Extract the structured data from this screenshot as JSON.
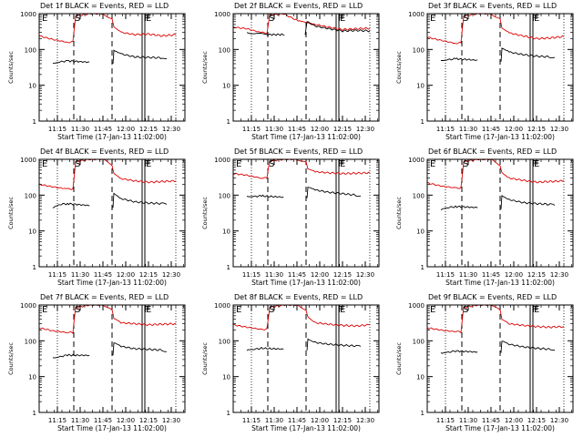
{
  "figure": {
    "series_legend": {
      "black": "Events",
      "red": "LLD"
    },
    "colors": {
      "events": "#000000",
      "lld": "#dd0000",
      "axes": "#000000",
      "grid": "#000000"
    }
  },
  "chart_data": [
    {
      "type": "line",
      "title": "Det 1f BLACK = Events, RED = LLD",
      "xlabel": "Start Time (17-Jan-13 11:02:00)",
      "ylabel": "Counts/sec",
      "yscale": "log",
      "ylim": [
        1,
        1000
      ],
      "xlim": [
        11.05,
        12.65
      ],
      "xticks": [
        "11:15",
        "11:30",
        "11:45",
        "12:00",
        "12:15",
        "12:30"
      ],
      "yticks": [
        "1",
        "10",
        "100",
        "1000"
      ],
      "markers": {
        "E": 11.07,
        "S": 11.43,
        "F": 12.19,
        "E2": 12.21
      },
      "dotted_lines": [
        11.25,
        12.55
      ],
      "dashed_lines": [
        11.43,
        11.85
      ],
      "solid_lines": [
        12.18,
        12.21
      ],
      "series": [
        {
          "name": "LLD",
          "color": "red",
          "x": [
            11.05,
            11.2,
            11.35,
            11.42,
            11.45,
            11.6,
            11.75,
            11.85,
            11.87,
            11.95,
            12.1,
            12.25,
            12.4,
            12.55
          ],
          "y": [
            240,
            190,
            160,
            160,
            850,
            1000,
            1000,
            720,
            430,
            300,
            260,
            270,
            240,
            260
          ]
        },
        {
          "name": "Events",
          "color": "black",
          "x": [
            11.2,
            11.28,
            11.36,
            11.86,
            11.87,
            11.95,
            12.1,
            12.25,
            12.4,
            12.45
          ],
          "y": [
            40,
            45,
            48,
            40,
            95,
            75,
            62,
            60,
            58,
            55
          ]
        }
      ]
    },
    {
      "type": "line",
      "title": "Det 2f BLACK = Events, RED = LLD",
      "xlabel": "Start Time (17-Jan-13 11:02:00)",
      "ylabel": "Counts/sec",
      "yscale": "log",
      "ylim": [
        1,
        1000
      ],
      "xlim": [
        11.05,
        12.65
      ],
      "xticks": [
        "11:15",
        "11:30",
        "11:45",
        "12:00",
        "12:15",
        "12:30"
      ],
      "yticks": [
        "1",
        "10",
        "100",
        "1000"
      ],
      "markers": {
        "S": 11.43,
        "F": 12.19,
        "E": 12.21
      },
      "dotted_lines": [
        11.25,
        12.55
      ],
      "dashed_lines": [
        11.43,
        11.85
      ],
      "solid_lines": [
        12.18,
        12.21
      ],
      "series": [
        {
          "name": "LLD",
          "color": "red",
          "x": [
            11.05,
            11.2,
            11.35,
            11.42,
            11.45,
            11.6,
            11.75,
            11.95,
            12.1,
            12.25,
            12.4,
            12.55
          ],
          "y": [
            420,
            380,
            300,
            290,
            900,
            1000,
            650,
            500,
            420,
            360,
            380,
            390
          ]
        },
        {
          "name": "Events",
          "color": "black",
          "x": [
            11.2,
            11.3,
            11.4,
            11.84,
            11.86,
            11.95,
            12.1,
            12.25,
            12.4,
            12.55
          ],
          "y": [
            300,
            280,
            260,
            260,
            600,
            450,
            380,
            330,
            340,
            330
          ]
        }
      ]
    },
    {
      "type": "line",
      "title": "Det 3f BLACK = Events, RED = LLD",
      "xlabel": "Start Time (17-Jan-13 11:02:00)",
      "ylabel": "Counts/sec",
      "yscale": "log",
      "ylim": [
        1,
        1000
      ],
      "xlim": [
        11.05,
        12.65
      ],
      "xticks": [
        "11:15",
        "11:30",
        "11:45",
        "12:00",
        "12:15",
        "12:30"
      ],
      "yticks": [
        "1",
        "10",
        "100",
        "1000"
      ],
      "markers": {
        "E": 11.07,
        "S": 11.43,
        "F": 12.19,
        "E2": 12.21
      },
      "dotted_lines": [
        11.25,
        12.55
      ],
      "dashed_lines": [
        11.43,
        11.85
      ],
      "solid_lines": [
        12.18,
        12.21
      ],
      "series": [
        {
          "name": "LLD",
          "color": "red",
          "x": [
            11.05,
            11.2,
            11.35,
            11.42,
            11.45,
            11.6,
            11.75,
            11.85,
            11.87,
            11.95,
            12.1,
            12.25,
            12.4,
            12.55
          ],
          "y": [
            220,
            180,
            150,
            150,
            850,
            1000,
            1000,
            700,
            400,
            290,
            240,
            200,
            210,
            230
          ]
        },
        {
          "name": "Events",
          "color": "black",
          "x": [
            11.2,
            11.28,
            11.36,
            11.86,
            11.87,
            11.95,
            12.1,
            12.25,
            12.4,
            12.45
          ],
          "y": [
            48,
            52,
            55,
            45,
            110,
            85,
            72,
            65,
            62,
            60
          ]
        }
      ]
    },
    {
      "type": "line",
      "title": "Det 4f BLACK = Events, RED = LLD",
      "xlabel": "Start Time (17-Jan-13 11:02:00)",
      "ylabel": "Counts/sec",
      "yscale": "log",
      "ylim": [
        1,
        1000
      ],
      "xlim": [
        11.05,
        12.65
      ],
      "xticks": [
        "11:15",
        "11:30",
        "11:45",
        "12:00",
        "12:15",
        "12:30"
      ],
      "yticks": [
        "1",
        "10",
        "100",
        "1000"
      ],
      "markers": {
        "E": 11.07,
        "S": 11.43,
        "F": 12.19,
        "E2": 12.21
      },
      "dotted_lines": [
        11.25,
        12.55
      ],
      "dashed_lines": [
        11.43,
        11.85
      ],
      "solid_lines": [
        12.18,
        12.21
      ],
      "series": [
        {
          "name": "LLD",
          "color": "red",
          "x": [
            11.05,
            11.2,
            11.35,
            11.42,
            11.45,
            11.6,
            11.75,
            11.85,
            11.87,
            11.95,
            12.1,
            12.25,
            12.4,
            12.55
          ],
          "y": [
            200,
            170,
            150,
            150,
            850,
            1000,
            1000,
            700,
            400,
            290,
            250,
            230,
            240,
            250
          ]
        },
        {
          "name": "Events",
          "color": "black",
          "x": [
            11.2,
            11.28,
            11.36,
            11.86,
            11.87,
            11.95,
            12.1,
            12.25,
            12.4,
            12.45
          ],
          "y": [
            45,
            55,
            58,
            45,
            110,
            80,
            65,
            60,
            58,
            55
          ]
        }
      ]
    },
    {
      "type": "line",
      "title": "Det 5f BLACK = Events, RED = LLD",
      "xlabel": "Start Time (17-Jan-13 11:02:00)",
      "ylabel": "Counts/sec",
      "yscale": "log",
      "ylim": [
        1,
        1000
      ],
      "xlim": [
        11.05,
        12.65
      ],
      "xticks": [
        "11:15",
        "11:30",
        "11:45",
        "12:00",
        "12:15",
        "12:30"
      ],
      "yticks": [
        "1",
        "10",
        "100",
        "1000"
      ],
      "markers": {
        "E": 11.07,
        "S": 11.43,
        "F": 12.19,
        "E2": 12.21
      },
      "dotted_lines": [
        11.25,
        12.55
      ],
      "dashed_lines": [
        11.43,
        11.85
      ],
      "solid_lines": [
        12.18,
        12.21
      ],
      "series": [
        {
          "name": "LLD",
          "color": "red",
          "x": [
            11.05,
            11.2,
            11.35,
            11.42,
            11.45,
            11.6,
            11.75,
            11.85,
            11.87,
            11.95,
            12.1,
            12.25,
            12.4,
            12.55
          ],
          "y": [
            400,
            360,
            300,
            300,
            900,
            1000,
            1000,
            800,
            550,
            450,
            420,
            400,
            410,
            420
          ]
        },
        {
          "name": "Events",
          "color": "black",
          "x": [
            11.2,
            11.28,
            11.36,
            11.86,
            11.87,
            11.95,
            12.1,
            12.25,
            12.4,
            12.45
          ],
          "y": [
            90,
            92,
            95,
            80,
            170,
            140,
            120,
            110,
            100,
            95
          ]
        }
      ]
    },
    {
      "type": "line",
      "title": "Det 6f BLACK = Events, RED = LLD",
      "xlabel": "Start Time (17-Jan-13 11:02:00)",
      "ylabel": "Counts/sec",
      "yscale": "log",
      "ylim": [
        1,
        1000
      ],
      "xlim": [
        11.05,
        12.65
      ],
      "xticks": [
        "11:15",
        "11:30",
        "11:45",
        "12:00",
        "12:15",
        "12:30"
      ],
      "yticks": [
        "1",
        "10",
        "100",
        "1000"
      ],
      "markers": {
        "E": 11.07,
        "S": 11.43,
        "F": 12.19,
        "E2": 12.21
      },
      "dotted_lines": [
        11.25,
        12.55
      ],
      "dashed_lines": [
        11.43,
        11.85
      ],
      "solid_lines": [
        12.18,
        12.21
      ],
      "series": [
        {
          "name": "LLD",
          "color": "red",
          "x": [
            11.05,
            11.2,
            11.35,
            11.42,
            11.45,
            11.6,
            11.75,
            11.85,
            11.87,
            11.95,
            12.1,
            12.25,
            12.4,
            12.55
          ],
          "y": [
            220,
            180,
            160,
            160,
            850,
            1000,
            1000,
            700,
            420,
            300,
            260,
            230,
            240,
            250
          ]
        },
        {
          "name": "Events",
          "color": "black",
          "x": [
            11.2,
            11.28,
            11.36,
            11.86,
            11.87,
            11.95,
            12.1,
            12.25,
            12.4,
            12.45
          ],
          "y": [
            40,
            45,
            48,
            42,
            95,
            75,
            62,
            58,
            55,
            52
          ]
        }
      ]
    },
    {
      "type": "line",
      "title": "Det 7f BLACK = Events, RED = LLD",
      "xlabel": "Start Time (17-Jan-13 11:02:00)",
      "ylabel": "Counts/sec",
      "yscale": "log",
      "ylim": [
        1,
        1000
      ],
      "xlim": [
        11.05,
        12.65
      ],
      "xticks": [
        "11:15",
        "11:30",
        "11:45",
        "12:00",
        "12:15",
        "12:30"
      ],
      "yticks": [
        "1",
        "10",
        "100",
        "1000"
      ],
      "markers": {
        "E": 11.07,
        "S": 11.43,
        "F": 12.19,
        "E2": 12.21
      },
      "dotted_lines": [
        11.25,
        12.55
      ],
      "dashed_lines": [
        11.43,
        11.85
      ],
      "solid_lines": [
        12.18,
        12.21
      ],
      "series": [
        {
          "name": "LLD",
          "color": "red",
          "x": [
            11.05,
            11.2,
            11.35,
            11.42,
            11.45,
            11.6,
            11.75,
            11.85,
            11.87,
            11.95,
            12.1,
            12.25,
            12.4,
            12.55
          ],
          "y": [
            230,
            190,
            170,
            170,
            850,
            1000,
            1000,
            700,
            430,
            320,
            300,
            280,
            290,
            300
          ]
        },
        {
          "name": "Events",
          "color": "black",
          "x": [
            11.2,
            11.28,
            11.36,
            11.86,
            11.87,
            11.95,
            12.1,
            12.25,
            12.4,
            12.45
          ],
          "y": [
            33,
            36,
            40,
            38,
            90,
            70,
            60,
            58,
            55,
            50
          ]
        }
      ]
    },
    {
      "type": "line",
      "title": "Det 8f BLACK = Events, RED = LLD",
      "xlabel": "Start Time (17-Jan-13 11:02:00)",
      "ylabel": "Counts/sec",
      "yscale": "log",
      "ylim": [
        1,
        1000
      ],
      "xlim": [
        11.05,
        12.65
      ],
      "xticks": [
        "11:15",
        "11:30",
        "11:45",
        "12:00",
        "12:15",
        "12:30"
      ],
      "yticks": [
        "1",
        "10",
        "100",
        "1000"
      ],
      "markers": {
        "E": 11.07,
        "S": 11.43,
        "F": 12.19,
        "E2": 12.21
      },
      "dotted_lines": [
        11.25,
        12.55
      ],
      "dashed_lines": [
        11.43,
        11.85
      ],
      "solid_lines": [
        12.18,
        12.21
      ],
      "series": [
        {
          "name": "LLD",
          "color": "red",
          "x": [
            11.05,
            11.2,
            11.35,
            11.42,
            11.45,
            11.6,
            11.75,
            11.85,
            11.87,
            11.95,
            12.1,
            12.25,
            12.4,
            12.55
          ],
          "y": [
            280,
            240,
            210,
            210,
            850,
            1000,
            1000,
            750,
            460,
            320,
            290,
            270,
            260,
            280
          ]
        },
        {
          "name": "Events",
          "color": "black",
          "x": [
            11.2,
            11.28,
            11.36,
            11.86,
            11.87,
            11.95,
            12.1,
            12.25,
            12.4,
            12.45
          ],
          "y": [
            55,
            58,
            62,
            55,
            110,
            90,
            80,
            75,
            72,
            70
          ]
        }
      ]
    },
    {
      "type": "line",
      "title": "Det 9f BLACK = Events, RED = LLD",
      "xlabel": "Start Time (17-Jan-13 11:02:00)",
      "ylabel": "Counts/sec",
      "yscale": "log",
      "ylim": [
        1,
        1000
      ],
      "xlim": [
        11.05,
        12.65
      ],
      "xticks": [
        "11:15",
        "11:30",
        "11:45",
        "12:00",
        "12:15",
        "12:30"
      ],
      "yticks": [
        "1",
        "10",
        "100",
        "1000"
      ],
      "markers": {
        "E": 11.07,
        "S": 11.43,
        "F": 12.19,
        "E2": 12.21
      },
      "dotted_lines": [
        11.25,
        12.55
      ],
      "dashed_lines": [
        11.43,
        11.85
      ],
      "solid_lines": [
        12.18,
        12.21
      ],
      "series": [
        {
          "name": "LLD",
          "color": "red",
          "x": [
            11.05,
            11.2,
            11.35,
            11.42,
            11.45,
            11.6,
            11.75,
            11.85,
            11.87,
            11.95,
            12.1,
            12.25,
            12.4,
            12.55
          ],
          "y": [
            230,
            200,
            180,
            180,
            850,
            1000,
            1000,
            700,
            400,
            300,
            270,
            250,
            240,
            250
          ]
        },
        {
          "name": "Events",
          "color": "black",
          "x": [
            11.2,
            11.28,
            11.36,
            11.86,
            11.87,
            11.95,
            12.1,
            12.25,
            12.4,
            12.45
          ],
          "y": [
            45,
            48,
            52,
            45,
            100,
            80,
            68,
            62,
            58,
            55
          ]
        }
      ]
    }
  ]
}
